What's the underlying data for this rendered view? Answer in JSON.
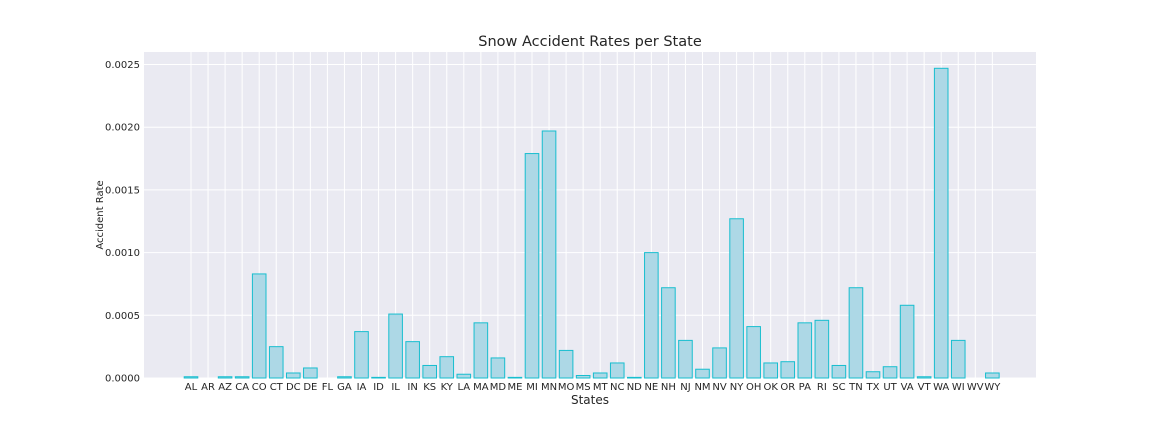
{
  "chart_data": {
    "type": "bar",
    "title": "Snow Accident Rates per State",
    "xlabel": "States",
    "ylabel": "Accident Rate",
    "ylim": [
      0,
      0.0026
    ],
    "yticks": [
      "0.0000",
      "0.0005",
      "0.0010",
      "0.0015",
      "0.0020",
      "0.0025"
    ],
    "grid": true,
    "colors": {
      "bar_fill": "#add8e6",
      "bar_edge": "#17becf",
      "plot_bg": "#eaeaf2",
      "grid": "#ffffff"
    },
    "categories": [
      "AL",
      "AR",
      "AZ",
      "CA",
      "CO",
      "CT",
      "DC",
      "DE",
      "FL",
      "GA",
      "IA",
      "ID",
      "IL",
      "IN",
      "KS",
      "KY",
      "LA",
      "MA",
      "MD",
      "ME",
      "MI",
      "MN",
      "MO",
      "MS",
      "MT",
      "NC",
      "ND",
      "NE",
      "NH",
      "NJ",
      "NM",
      "NV",
      "NY",
      "OH",
      "OK",
      "OR",
      "PA",
      "RI",
      "SC",
      "TN",
      "TX",
      "UT",
      "VA",
      "VT",
      "WA",
      "WI",
      "WV",
      "WY"
    ],
    "values": [
      1e-05,
      0.0,
      1e-05,
      1e-05,
      0.00083,
      0.00025,
      4e-05,
      8e-05,
      0.0,
      1e-05,
      0.00037,
      5e-06,
      0.00051,
      0.00029,
      0.0001,
      0.00017,
      3e-05,
      0.00044,
      0.00016,
      5e-06,
      0.00179,
      0.00197,
      0.00022,
      2e-05,
      4e-05,
      0.00012,
      5e-06,
      0.001,
      0.00072,
      0.0003,
      7e-05,
      0.00024,
      0.00127,
      0.00041,
      0.00012,
      0.00013,
      0.00044,
      0.00046,
      0.0001,
      0.00072,
      5e-05,
      9e-05,
      0.00058,
      1e-05,
      0.00247,
      0.0003,
      0.0,
      4e-05
    ]
  }
}
